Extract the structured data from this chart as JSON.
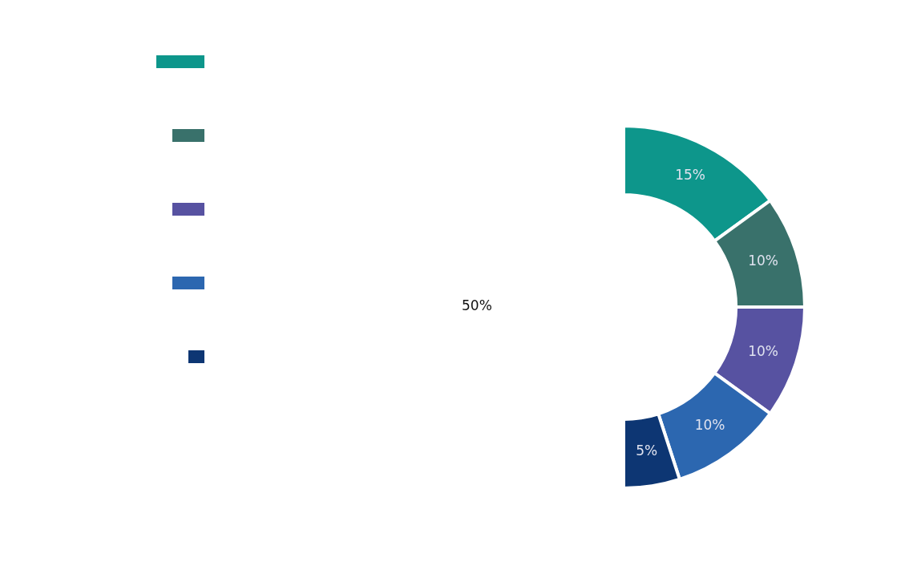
{
  "chart_data": {
    "type": "donut",
    "categories": [
      null,
      null,
      null,
      null,
      null,
      null
    ],
    "values": [
      15,
      10,
      10,
      10,
      5,
      50
    ],
    "colors": [
      "#0d968b",
      "#39716b",
      "#5752a1",
      "#2c67b0",
      "#0d3673",
      "#ffffff"
    ],
    "value_labels": [
      "15%",
      "10%",
      "10%",
      "10%",
      "5%",
      "50%"
    ]
  }
}
